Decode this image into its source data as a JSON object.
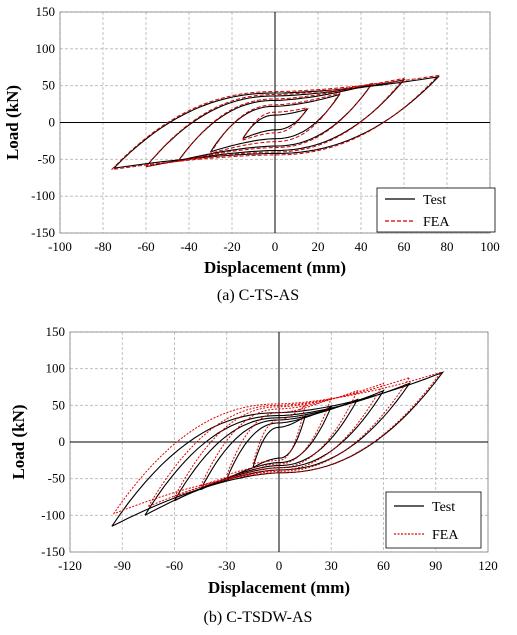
{
  "chart_data": [
    {
      "type": "line",
      "caption": "(a) C-TS-AS",
      "xlabel": "Displacement (mm)",
      "ylabel": "Load (kN)",
      "xlim": [
        -100,
        100
      ],
      "ylim": [
        -150,
        150
      ],
      "xticks": [
        "-100",
        "-80",
        "-60",
        "-40",
        "-20",
        "0",
        "20",
        "40",
        "60",
        "80",
        "100"
      ],
      "yticks": [
        "150",
        "100",
        "50",
        "0",
        "-50",
        "-100",
        "-150"
      ],
      "grid": true,
      "legend_position": "bottom-right",
      "series": [
        {
          "name": "Test",
          "style": "solid",
          "color": "#000000",
          "loops": [
            {
              "dmax": 15,
              "fmax": 18,
              "dmin": -15,
              "fmin": -22,
              "yp": 10,
              "yn": -10
            },
            {
              "dmax": 30,
              "fmax": 38,
              "dmin": -30,
              "fmin": -40,
              "yp": 22,
              "yn": -22
            },
            {
              "dmax": 45,
              "fmax": 52,
              "dmin": -45,
              "fmin": -52,
              "yp": 30,
              "yn": -32
            },
            {
              "dmax": 60,
              "fmax": 58,
              "dmin": -60,
              "fmin": -60,
              "yp": 36,
              "yn": -38
            },
            {
              "dmax": 76,
              "fmax": 62,
              "dmin": -75,
              "fmin": -62,
              "yp": 40,
              "yn": -42
            }
          ]
        },
        {
          "name": "FEA",
          "style": "dashed",
          "color": "#d00000",
          "loops": [
            {
              "dmax": 15,
              "fmax": 20,
              "dmin": -15,
              "fmin": -24,
              "yp": 14,
              "yn": -14
            },
            {
              "dmax": 30,
              "fmax": 40,
              "dmin": -30,
              "fmin": -42,
              "yp": 24,
              "yn": -26
            },
            {
              "dmax": 45,
              "fmax": 53,
              "dmin": -45,
              "fmin": -53,
              "yp": 32,
              "yn": -34
            },
            {
              "dmax": 60,
              "fmax": 60,
              "dmin": -60,
              "fmin": -60,
              "yp": 38,
              "yn": -40
            },
            {
              "dmax": 76,
              "fmax": 64,
              "dmin": -76,
              "fmin": -64,
              "yp": 42,
              "yn": -44
            }
          ]
        }
      ]
    },
    {
      "type": "line",
      "caption": "(b) C-TSDW-AS",
      "xlabel": "Displacement (mm)",
      "ylabel": "Load (kN)",
      "xlim": [
        -120,
        120
      ],
      "ylim": [
        -150,
        150
      ],
      "xticks": [
        "-120",
        "-90",
        "-60",
        "-30",
        "0",
        "30",
        "60",
        "90",
        "120"
      ],
      "yticks": [
        "150",
        "100",
        "50",
        "0",
        "-50",
        "-100",
        "-150"
      ],
      "grid": true,
      "legend_position": "bottom-right",
      "series": [
        {
          "name": "Test",
          "style": "solid",
          "color": "#000000",
          "loops": [
            {
              "dmax": 15,
              "fmax": 35,
              "dmin": -15,
              "fmin": -35,
              "yp": 20,
              "yn": -22
            },
            {
              "dmax": 30,
              "fmax": 48,
              "dmin": -30,
              "fmin": -50,
              "yp": 26,
              "yn": -28
            },
            {
              "dmax": 45,
              "fmax": 58,
              "dmin": -45,
              "fmin": -65,
              "yp": 30,
              "yn": -32
            },
            {
              "dmax": 60,
              "fmax": 70,
              "dmin": -60,
              "fmin": -80,
              "yp": 33,
              "yn": -35
            },
            {
              "dmax": 75,
              "fmax": 80,
              "dmin": -77,
              "fmin": -100,
              "yp": 36,
              "yn": -38
            },
            {
              "dmax": 94,
              "fmax": 95,
              "dmin": -96,
              "fmin": -115,
              "yp": 40,
              "yn": -42
            }
          ]
        },
        {
          "name": "FEA",
          "style": "dotted",
          "color": "#e00000",
          "loops": [
            {
              "dmax": 15,
              "fmax": 50,
              "dmin": -15,
              "fmin": -30,
              "yp": 30,
              "yn": -25
            },
            {
              "dmax": 30,
              "fmax": 60,
              "dmin": -30,
              "fmin": -45,
              "yp": 40,
              "yn": -30
            },
            {
              "dmax": 45,
              "fmax": 70,
              "dmin": -45,
              "fmin": -60,
              "yp": 45,
              "yn": -35
            },
            {
              "dmax": 60,
              "fmax": 80,
              "dmin": -60,
              "fmin": -75,
              "yp": 48,
              "yn": -38
            },
            {
              "dmax": 75,
              "fmax": 88,
              "dmin": -75,
              "fmin": -88,
              "yp": 50,
              "yn": -40
            },
            {
              "dmax": 93,
              "fmax": 95,
              "dmin": -95,
              "fmin": -98,
              "yp": 52,
              "yn": -42
            }
          ]
        }
      ]
    }
  ]
}
